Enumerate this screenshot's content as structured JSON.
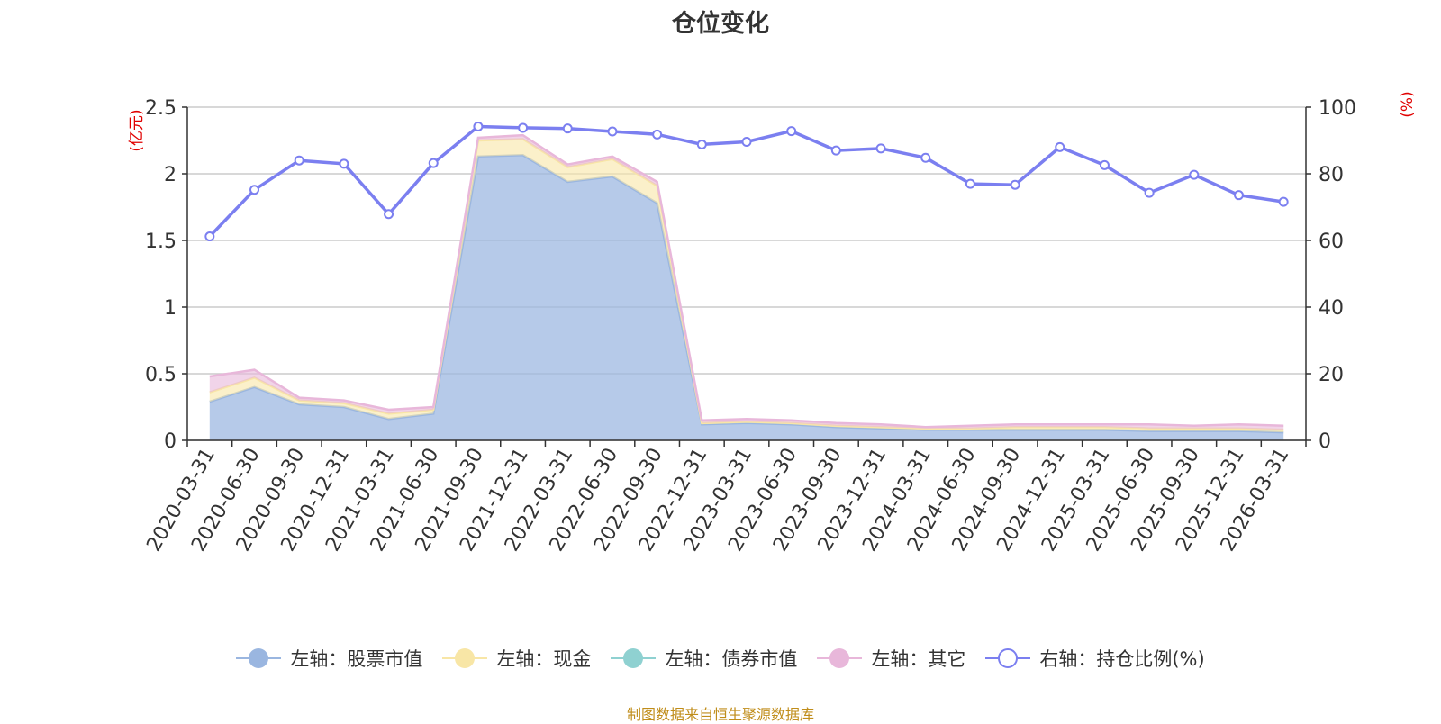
{
  "title": "仓位变化",
  "source_note": "制图数据来自恒生聚源数据库",
  "colors": {
    "stock": "#9ab6e0",
    "cash": "#f8e6a6",
    "bond": "#8fd1d1",
    "other": "#e8b7da",
    "ratio": "#7b7ff0",
    "axis_unit": "#e00000"
  },
  "chart_data": {
    "type": "area",
    "x": [
      "2020-03-31",
      "2020-06-30",
      "2020-09-30",
      "2020-12-31",
      "2021-03-31",
      "2021-06-30",
      "2021-09-30",
      "2021-12-31",
      "2022-03-31",
      "2022-06-30",
      "2022-09-30",
      "2022-12-31",
      "2023-03-31",
      "2023-06-30",
      "2023-09-30",
      "2023-12-31",
      "2024-03-31",
      "2024-06-30",
      "2024-09-30",
      "2024-12-31",
      "2025-03-31",
      "2025-06-30",
      "2025-09-30",
      "2025-12-31",
      "2026-03-31"
    ],
    "left_axis": {
      "unit": "(亿元)",
      "ylim": [
        0,
        2.5
      ],
      "ticks": [
        "0",
        "0.5",
        "1",
        "1.5",
        "2",
        "2.5"
      ]
    },
    "right_axis": {
      "unit": "(%)",
      "ylim": [
        0,
        100
      ],
      "ticks": [
        "0",
        "20",
        "40",
        "60",
        "80",
        "100"
      ]
    },
    "series": [
      {
        "name": "左轴：股票市值",
        "key": "stock",
        "axis": "left",
        "stacked": true,
        "values": [
          0.29,
          0.4,
          0.27,
          0.25,
          0.16,
          0.2,
          2.13,
          2.14,
          1.94,
          1.98,
          1.78,
          0.12,
          0.13,
          0.12,
          0.1,
          0.09,
          0.08,
          0.08,
          0.08,
          0.08,
          0.08,
          0.07,
          0.07,
          0.07,
          0.06
        ]
      },
      {
        "name": "左轴：现金",
        "key": "cash",
        "axis": "left",
        "stacked": true,
        "values": [
          0.07,
          0.07,
          0.03,
          0.03,
          0.04,
          0.03,
          0.12,
          0.12,
          0.11,
          0.13,
          0.13,
          0.01,
          0.01,
          0.01,
          0.01,
          0.01,
          0.01,
          0.01,
          0.02,
          0.02,
          0.02,
          0.02,
          0.02,
          0.02,
          0.02
        ]
      },
      {
        "name": "左轴：债券市值",
        "key": "bond",
        "axis": "left",
        "stacked": true,
        "values": [
          0,
          0,
          0,
          0,
          0,
          0,
          0,
          0,
          0,
          0,
          0,
          0,
          0,
          0,
          0,
          0,
          0,
          0,
          0,
          0,
          0,
          0,
          0,
          0,
          0
        ]
      },
      {
        "name": "左轴：其它",
        "key": "other",
        "axis": "left",
        "stacked": true,
        "values": [
          0.12,
          0.06,
          0.02,
          0.02,
          0.03,
          0.02,
          0.02,
          0.03,
          0.02,
          0.02,
          0.03,
          0.02,
          0.02,
          0.02,
          0.02,
          0.02,
          0.01,
          0.02,
          0.02,
          0.02,
          0.02,
          0.03,
          0.02,
          0.03,
          0.03
        ]
      },
      {
        "name": "右轴：持仓比例(%)",
        "key": "ratio",
        "axis": "right",
        "type": "line",
        "values": [
          61.2,
          75.2,
          84.0,
          83.0,
          67.9,
          83.2,
          94.2,
          93.8,
          93.6,
          92.7,
          91.8,
          88.8,
          89.6,
          92.8,
          87.0,
          87.6,
          84.8,
          77.0,
          76.7,
          88.0,
          82.6,
          74.3,
          79.7,
          73.6,
          71.6
        ]
      }
    ],
    "legend": {
      "position": "bottom-center"
    },
    "grid": {
      "horizontal": true,
      "vertical": false
    }
  }
}
